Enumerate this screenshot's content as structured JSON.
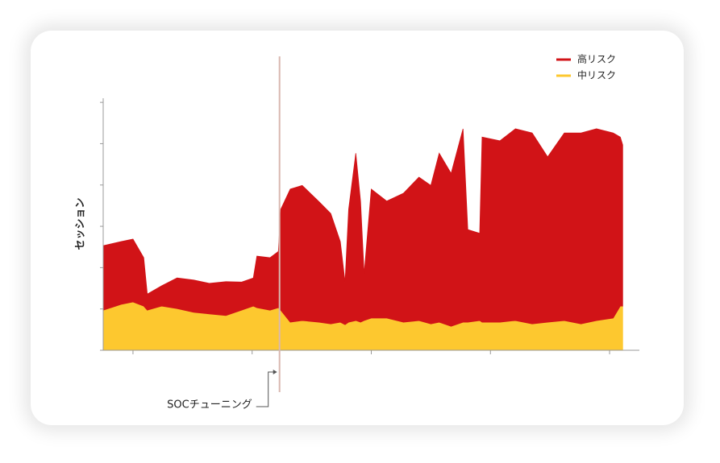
{
  "chart_data": {
    "type": "stacked_area",
    "y_label": "セッション",
    "x": [
      -0.25,
      -0.1,
      0,
      0.09,
      0.12,
      0.24,
      0.37,
      0.51,
      0.64,
      0.78,
      0.91,
      1.01,
      1.04,
      1.15,
      1.22,
      1.24,
      1.32,
      1.42,
      1.56,
      1.66,
      1.74,
      1.78,
      1.81,
      1.87,
      1.91,
      1.94,
      2.0,
      2.13,
      2.27,
      2.4,
      2.5,
      2.57,
      2.67,
      2.77,
      2.81,
      2.91,
      2.93,
      3.08,
      3.21,
      3.35,
      3.48,
      3.62,
      3.76,
      3.89,
      4.03,
      4.09,
      4.11
    ],
    "series": [
      {
        "name": "中リスク",
        "color": "#fdc82f",
        "values": [
          0.97,
          1.11,
          1.17,
          1.07,
          0.97,
          1.07,
          1.01,
          0.92,
          0.88,
          0.84,
          0.97,
          1.07,
          1.03,
          0.97,
          1.03,
          0.97,
          0.68,
          0.72,
          0.68,
          0.64,
          0.68,
          0.62,
          0.68,
          0.72,
          0.68,
          0.72,
          0.78,
          0.78,
          0.68,
          0.72,
          0.64,
          0.68,
          0.58,
          0.68,
          0.68,
          0.72,
          0.68,
          0.68,
          0.72,
          0.64,
          0.68,
          0.72,
          0.64,
          0.72,
          0.78,
          1.07,
          1.07
        ]
      },
      {
        "name": "高リスク",
        "color": "#d11317",
        "values": [
          1.56,
          1.52,
          1.52,
          1.17,
          0.39,
          0.49,
          0.74,
          0.78,
          0.74,
          0.82,
          0.68,
          0.68,
          1.25,
          1.27,
          1.36,
          2.44,
          3.22,
          3.27,
          2.92,
          2.67,
          1.95,
          1.03,
          2.73,
          4.05,
          2.92,
          1.13,
          3.12,
          2.83,
          3.12,
          3.47,
          3.35,
          4.09,
          3.7,
          4.68,
          2.24,
          2.11,
          4.48,
          4.39,
          4.64,
          4.62,
          4.0,
          4.54,
          4.62,
          4.64,
          4.48,
          4.09,
          3.9
        ]
      }
    ],
    "xlim": [
      -0.25,
      4.25
    ],
    "xticks": [
      0,
      1,
      2,
      3,
      4
    ],
    "ylim": [
      0,
      6.1
    ],
    "yticks": [
      0,
      1,
      2,
      3,
      4,
      5,
      6
    ],
    "legend": "top-right",
    "annotations": [
      {
        "text": "SOCチューニング",
        "x": 1.23
      }
    ]
  }
}
